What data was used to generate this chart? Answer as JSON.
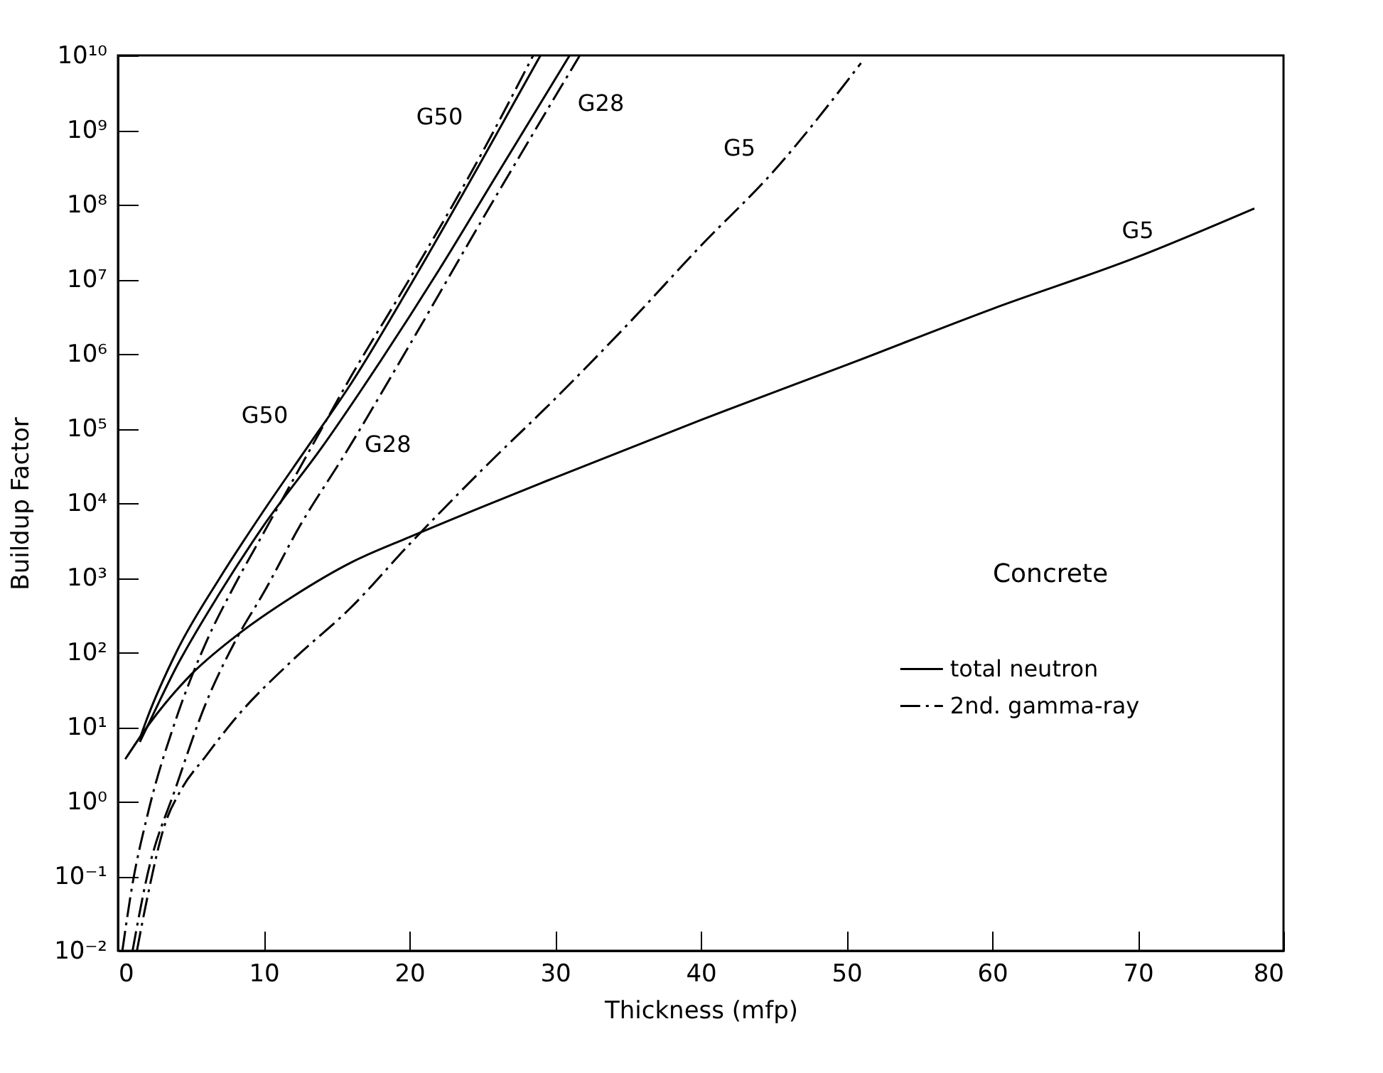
{
  "chart_data": {
    "type": "line",
    "xlabel": "Thickness (mfp)",
    "ylabel": "Buildup Factor",
    "log": "y",
    "xlim": [
      0,
      80
    ],
    "xticks": [
      0,
      10,
      20,
      30,
      40,
      50,
      60,
      70,
      80
    ],
    "ylim": [
      0.01,
      10000000000
    ],
    "yticks": [
      {
        "value": 0.01,
        "label": "10⁻²"
      },
      {
        "value": 0.1,
        "label": "10⁻¹"
      },
      {
        "value": 1,
        "label": "10⁰"
      },
      {
        "value": 10,
        "label": "10¹"
      },
      {
        "value": 100,
        "label": "10²"
      },
      {
        "value": 1000,
        "label": "10³"
      },
      {
        "value": 10000,
        "label": "10⁴"
      },
      {
        "value": 100000,
        "label": "10⁵"
      },
      {
        "value": 1000000,
        "label": "10⁶"
      },
      {
        "value": 10000000,
        "label": "10⁷"
      },
      {
        "value": 100000000,
        "label": "10⁸"
      },
      {
        "value": 1000000000,
        "label": "10⁹"
      },
      {
        "value": 10000000000,
        "label": "10¹⁰"
      }
    ],
    "legend": "right",
    "series": [
      {
        "name": "total neutron",
        "color": "#000000",
        "line_style": "solid",
        "x": [
          0.5,
          2,
          5,
          8,
          12,
          16,
          20,
          25,
          30,
          40,
          50,
          60,
          70,
          78
        ],
        "values": [
          3.7,
          10,
          50,
          160,
          560,
          1600,
          3500,
          8900,
          22000,
          130000,
          710000,
          4000000,
          20000000,
          89000000
        ]
      },
      {
        "name": "2nd. gamma-ray",
        "color": "#000000",
        "line_style": "dashed",
        "x": [
          1.3,
          2,
          3.2,
          4.3,
          6,
          8.2,
          12,
          16,
          20,
          25,
          30,
          35,
          40,
          45,
          51
        ],
        "values": [
          0.01,
          0.05,
          0.48,
          1.4,
          4,
          14,
          79,
          400,
          2800,
          28000,
          250000,
          2500000,
          28000000,
          280000000,
          7900000000
        ]
      },
      {
        "color": "#000000",
        "line_style": "solid",
        "x": [
          1.5,
          2,
          4,
          7,
          10,
          13,
          16,
          20,
          25,
          29
        ],
        "values": [
          7,
          13,
          100,
          1000,
          7900,
          56000,
          400000,
          7900000,
          400000000,
          10000000000
        ]
      },
      {
        "color": "#000000",
        "line_style": "dashed",
        "x": [
          0.3,
          1,
          2,
          4,
          6,
          8,
          10,
          13,
          16,
          20,
          25,
          28.5
        ],
        "values": [
          0.01,
          0.079,
          0.63,
          13,
          130,
          790,
          4000,
          45000,
          500000,
          10000000,
          500000000,
          10000000000
        ]
      },
      {
        "color": "#000000",
        "line_style": "solid",
        "x": [
          1.5,
          2,
          4,
          7,
          10,
          14,
          18,
          22,
          26,
          31
        ],
        "values": [
          6.3,
          10,
          63,
          630,
          5000,
          56000,
          790000,
          13000000,
          250000000,
          10000000000
        ]
      },
      {
        "color": "#000000",
        "line_style": "dashed",
        "x": [
          1,
          2,
          4,
          6,
          8.2,
          10,
          12.5,
          15.6,
          20,
          25,
          31.7
        ],
        "values": [
          0.01,
          0.1,
          1.6,
          20,
          160,
          630,
          5000,
          46000,
          1300000,
          63000000,
          10000000000
        ]
      }
    ],
    "annotations": [
      {
        "text": "G50",
        "x": 13,
        "y": 56000
      },
      {
        "text": "G28",
        "x": 15.6,
        "y": 46000
      },
      {
        "text": "G50",
        "x": 25,
        "y": 400000000
      },
      {
        "text": "G28",
        "x": 31,
        "y": 10000000000
      },
      {
        "text": "G5",
        "x": 45,
        "y": 280000000
      },
      {
        "text": "G5",
        "x": 70,
        "y": 20000000
      },
      "Concrete"
    ]
  }
}
